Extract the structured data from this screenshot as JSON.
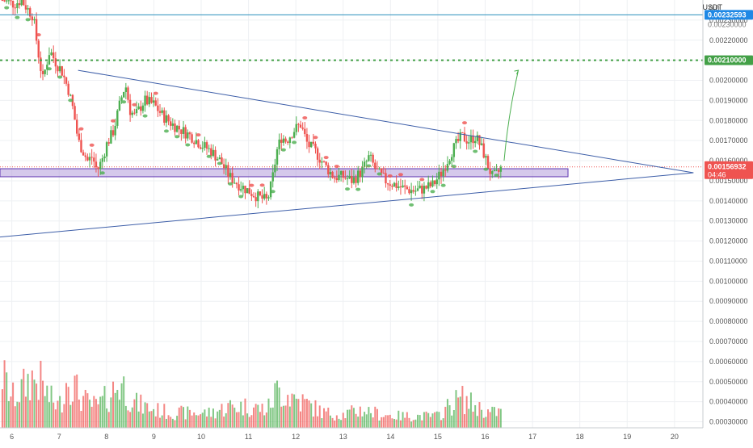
{
  "header": {
    "currency_label": "USDT"
  },
  "colors": {
    "up": "#26a69a",
    "up_candle": "#4caf50",
    "down": "#ef5350",
    "trendline": "#3d5ea8",
    "zone_fill": "#b39ddb",
    "zone_stroke": "#5e35b1",
    "resistance_line": "#2a8fbd",
    "target_line": "#43a047",
    "projection_arrow": "#4caf50",
    "price_badge": "#ef5350",
    "grid": "#eef0f3",
    "axis_text": "#555555"
  },
  "price_axis": {
    "badges": {
      "resistance": "0.00232593",
      "resistance_sub": "0.00230000",
      "target": "0.00210000",
      "current": "0.00156932",
      "countdown": "04:46"
    }
  },
  "chart_data": {
    "type": "candlestick",
    "title": "",
    "x_ticks": [
      "6",
      "7",
      "8",
      "9",
      "10",
      "11",
      "12",
      "13",
      "14",
      "15",
      "16",
      "17",
      "18",
      "19",
      "20"
    ],
    "y_ticks": [
      "0.00230000",
      "0.00220000",
      "0.00210000",
      "0.00200000",
      "0.00190000",
      "0.00180000",
      "0.00170000",
      "0.00160000",
      "0.00150000",
      "0.00140000",
      "0.00130000",
      "0.00120000",
      "0.00110000",
      "0.00100000",
      "0.00090000",
      "0.00080000",
      "0.00070000",
      "0.00060000",
      "0.00050000",
      "0.00040000",
      "0.00030000"
    ],
    "y_top_partial_tick": "0.0",
    "ylim": [
      0.00027,
      0.0024
    ],
    "xlim": [
      5.75,
      20.6
    ],
    "annotations": {
      "resistance_level": 0.00232593,
      "target_level": 0.0021,
      "current_price": 0.00156932,
      "support_zone": {
        "from_day": 5.75,
        "to_day": 17.75,
        "low": 0.00152,
        "high": 0.00156
      },
      "upper_trendline": {
        "from": [
          7.4,
          0.00205
        ],
        "to": [
          20.4,
          0.00154
        ]
      },
      "lower_trendline": {
        "from": [
          5.75,
          0.00122
        ],
        "to": [
          20.4,
          0.00154
        ]
      },
      "projection": {
        "from": [
          16.4,
          0.0016
        ],
        "to": [
          16.7,
          0.00205
        ]
      }
    },
    "close_path": [
      [
        5.8,
        0.0024
      ],
      [
        6.05,
        0.00238
      ],
      [
        6.2,
        0.0024
      ],
      [
        6.35,
        0.00235
      ],
      [
        6.45,
        0.00232
      ],
      [
        6.55,
        0.00215
      ],
      [
        6.65,
        0.002
      ],
      [
        6.8,
        0.00215
      ],
      [
        6.95,
        0.00208
      ],
      [
        7.05,
        0.00205
      ],
      [
        7.2,
        0.00195
      ],
      [
        7.3,
        0.00185
      ],
      [
        7.4,
        0.0017
      ],
      [
        7.5,
        0.00165
      ],
      [
        7.6,
        0.0016
      ],
      [
        7.7,
        0.00162
      ],
      [
        7.8,
        0.00155
      ],
      [
        7.9,
        0.0016
      ],
      [
        8.0,
        0.00168
      ],
      [
        8.15,
        0.00175
      ],
      [
        8.3,
        0.0019
      ],
      [
        8.4,
        0.00198
      ],
      [
        8.5,
        0.00185
      ],
      [
        8.6,
        0.00182
      ],
      [
        8.8,
        0.0019
      ],
      [
        9.0,
        0.00188
      ],
      [
        9.2,
        0.00182
      ],
      [
        9.4,
        0.00178
      ],
      [
        9.6,
        0.00175
      ],
      [
        9.8,
        0.00172
      ],
      [
        10.0,
        0.00168
      ],
      [
        10.2,
        0.00165
      ],
      [
        10.4,
        0.0016
      ],
      [
        10.6,
        0.00152
      ],
      [
        10.8,
        0.00148
      ],
      [
        11.0,
        0.00145
      ],
      [
        11.2,
        0.00142
      ],
      [
        11.4,
        0.0014
      ],
      [
        11.5,
        0.0015
      ],
      [
        11.6,
        0.00165
      ],
      [
        11.7,
        0.00172
      ],
      [
        11.8,
        0.0017
      ],
      [
        11.95,
        0.00175
      ],
      [
        12.1,
        0.00178
      ],
      [
        12.25,
        0.00168
      ],
      [
        12.4,
        0.00165
      ],
      [
        12.6,
        0.00158
      ],
      [
        12.8,
        0.00152
      ],
      [
        13.0,
        0.00152
      ],
      [
        13.2,
        0.0015
      ],
      [
        13.4,
        0.00155
      ],
      [
        13.55,
        0.00162
      ],
      [
        13.7,
        0.00155
      ],
      [
        13.9,
        0.0015
      ],
      [
        14.1,
        0.00148
      ],
      [
        14.3,
        0.00146
      ],
      [
        14.5,
        0.00145
      ],
      [
        14.7,
        0.00146
      ],
      [
        14.9,
        0.00148
      ],
      [
        15.1,
        0.00155
      ],
      [
        15.3,
        0.00165
      ],
      [
        15.5,
        0.00172
      ],
      [
        15.65,
        0.0017
      ],
      [
        15.8,
        0.00172
      ],
      [
        15.95,
        0.00165
      ],
      [
        16.05,
        0.00158
      ],
      [
        16.15,
        0.00152
      ],
      [
        16.25,
        0.00153
      ],
      [
        16.35,
        0.00157
      ]
    ],
    "volume_path": [
      [
        5.8,
        0.0006
      ],
      [
        6.0,
        0.00045
      ],
      [
        6.2,
        0.0005
      ],
      [
        6.4,
        0.00058
      ],
      [
        6.6,
        0.00055
      ],
      [
        6.8,
        0.00045
      ],
      [
        7.0,
        0.0004
      ],
      [
        7.2,
        0.0006
      ],
      [
        7.4,
        0.00048
      ],
      [
        7.6,
        0.00042
      ],
      [
        7.8,
        0.0004
      ],
      [
        8.0,
        0.00045
      ],
      [
        8.3,
        0.00055
      ],
      [
        8.6,
        0.00042
      ],
      [
        9.0,
        0.00038
      ],
      [
        9.4,
        0.00036
      ],
      [
        9.8,
        0.00036
      ],
      [
        10.2,
        0.00036
      ],
      [
        10.6,
        0.0004
      ],
      [
        11.0,
        0.0004
      ],
      [
        11.4,
        0.00038
      ],
      [
        11.6,
        0.0005
      ],
      [
        11.8,
        0.00048
      ],
      [
        12.2,
        0.00042
      ],
      [
        12.6,
        0.00036
      ],
      [
        13.0,
        0.00035
      ],
      [
        13.4,
        0.00038
      ],
      [
        13.8,
        0.00035
      ],
      [
        14.2,
        0.00034
      ],
      [
        14.6,
        0.00034
      ],
      [
        15.0,
        0.00034
      ],
      [
        15.3,
        0.00042
      ],
      [
        15.5,
        0.00045
      ],
      [
        15.8,
        0.0004
      ],
      [
        16.1,
        0.00036
      ],
      [
        16.35,
        0.00037
      ]
    ]
  }
}
